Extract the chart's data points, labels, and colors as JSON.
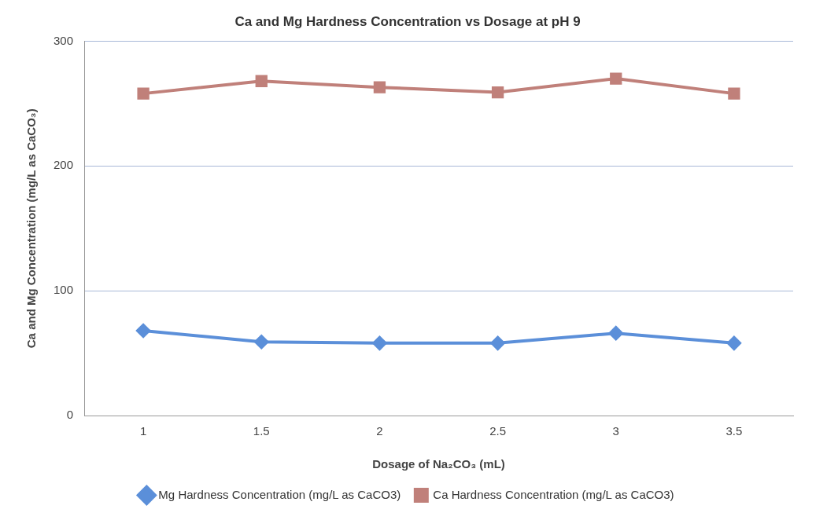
{
  "chart_data": {
    "type": "line",
    "title": "Ca and Mg Hardness Concentration vs Dosage at pH 9",
    "xlabel": "Dosage of Na₂CO₃ (mL)",
    "ylabel": "Ca and Mg Concentration (mg/L as CaCO₃)",
    "categories": [
      "1",
      "1.5",
      "2",
      "2.5",
      "3",
      "3.5"
    ],
    "series": [
      {
        "name": "Mg Hardness Concentration (mg/L as CaCO3)",
        "color": "#5b8fd9",
        "marker": "diamond",
        "values": [
          68,
          59,
          58,
          58,
          66,
          58
        ]
      },
      {
        "name": "Ca Hardness Concentration (mg/L as CaCO3)",
        "color": "#c0807a",
        "marker": "square",
        "values": [
          258,
          268,
          263,
          259,
          270,
          258
        ]
      }
    ],
    "ylim": [
      0,
      300
    ],
    "yticks": [
      0,
      100,
      200,
      300
    ],
    "grid": "y",
    "legend": "bottom",
    "line_style": "solid"
  }
}
